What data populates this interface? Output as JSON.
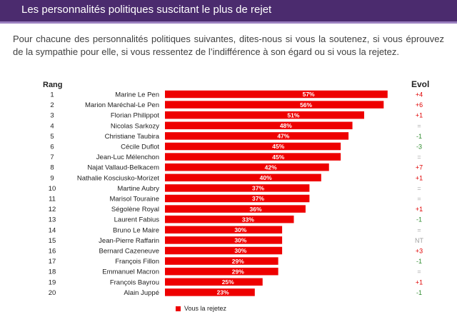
{
  "header": {
    "title": "Les personnalités politiques suscitant le plus de rejet"
  },
  "intro": "Pour chacune des personnalités politiques suivantes, dites-nous si vous la soutenez, si vous éprouvez de la sympathie pour elle, si vous ressentez de l’indifférence à son égard ou si vous la rejetez.",
  "columns": {
    "rank": "Rang",
    "evol": "Evol"
  },
  "colors": {
    "bar": "#ee0000",
    "evol_positive": "#e00000",
    "evol_negative": "#2e8b2e",
    "evol_neutral": "#a0a0a0"
  },
  "chart_data": {
    "type": "bar",
    "orientation": "horizontal",
    "series": [
      {
        "name": "Vous la rejetez",
        "color": "#ee0000"
      }
    ],
    "legend": "bottom",
    "xlim": [
      0,
      100
    ],
    "rows": [
      {
        "rank": "1",
        "name": "Marine Le Pen",
        "value": 57,
        "label": "57%",
        "evol": "+4"
      },
      {
        "rank": "2",
        "name": "Marion Maréchal-Le Pen",
        "value": 56,
        "label": "56%",
        "evol": "+6"
      },
      {
        "rank": "3",
        "name": "Florian Philippot",
        "value": 51,
        "label": "51%",
        "evol": "+1"
      },
      {
        "rank": "4",
        "name": "Nicolas Sarkozy",
        "value": 48,
        "label": "48%",
        "evol": "="
      },
      {
        "rank": "5",
        "name": "Christiane Taubira",
        "value": 47,
        "label": "47%",
        "evol": "-1"
      },
      {
        "rank": "6",
        "name": "Cécile Duflot",
        "value": 45,
        "label": "45%",
        "evol": "-3"
      },
      {
        "rank": "7",
        "name": "Jean-Luc Mélenchon",
        "value": 45,
        "label": "45%",
        "evol": "="
      },
      {
        "rank": "8",
        "name": "Najat Vallaud-Belkacem",
        "value": 42,
        "label": "42%",
        "evol": "+7"
      },
      {
        "rank": "9",
        "name": "Nathalie Kosciusko-Morizet",
        "value": 40,
        "label": "40%",
        "evol": "+1"
      },
      {
        "rank": "10",
        "name": "Martine Aubry",
        "value": 37,
        "label": "37%",
        "evol": "="
      },
      {
        "rank": "11",
        "name": "Marisol Touraine",
        "value": 37,
        "label": "37%",
        "evol": "="
      },
      {
        "rank": "12",
        "name": "Ségolène Royal",
        "value": 36,
        "label": "36%",
        "evol": "+1"
      },
      {
        "rank": "13",
        "name": "Laurent Fabius",
        "value": 33,
        "label": "33%",
        "evol": "-1"
      },
      {
        "rank": "14",
        "name": "Bruno Le Maire",
        "value": 30,
        "label": "30%",
        "evol": "="
      },
      {
        "rank": "15",
        "name": "Jean-Pierre Raffarin",
        "value": 30,
        "label": "30%",
        "evol": "NT"
      },
      {
        "rank": "16",
        "name": "Bernard Cazeneuve",
        "value": 30,
        "label": "30%",
        "evol": "+3"
      },
      {
        "rank": "17",
        "name": "François Fillon",
        "value": 29,
        "label": "29%",
        "evol": "-1"
      },
      {
        "rank": "18",
        "name": "Emmanuel Macron",
        "value": 29,
        "label": "29%",
        "evol": "="
      },
      {
        "rank": "19",
        "name": "François Bayrou",
        "value": 25,
        "label": "25%",
        "evol": "+1"
      },
      {
        "rank": "20",
        "name": "Alain Juppé",
        "value": 23,
        "label": "23%",
        "evol": "-1"
      }
    ]
  }
}
